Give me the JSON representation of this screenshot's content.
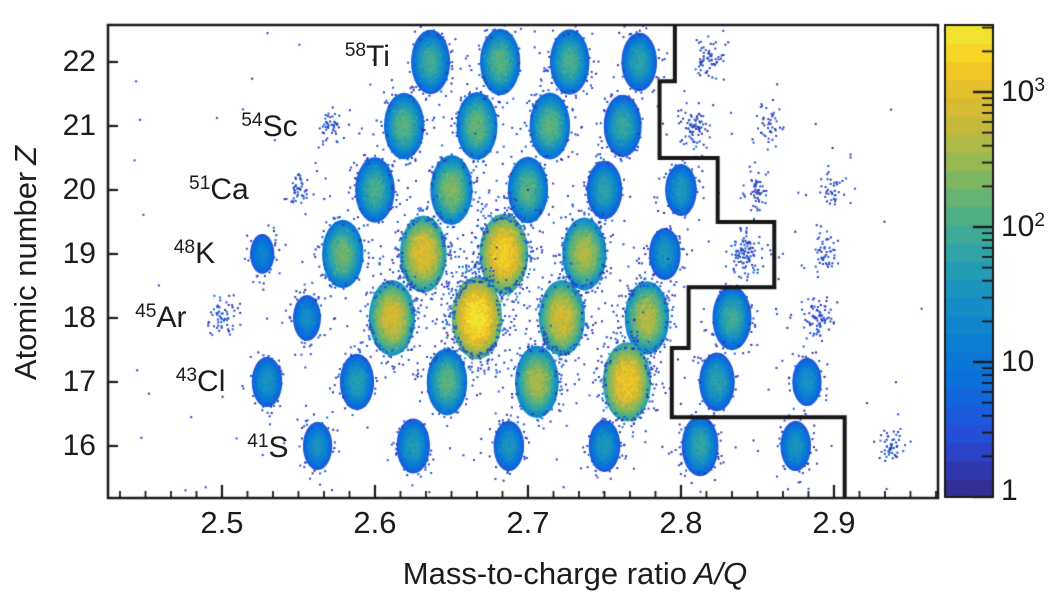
{
  "chart_data": {
    "type": "heatmap",
    "title": "",
    "xlabel": "Mass-to-charge ratio A/Q",
    "xlabel_text": "Mass-to-charge ratio",
    "xlabel_math": "A/Q",
    "ylabel": "Atomic number Z",
    "ylabel_text": "Atomic number",
    "ylabel_math": "Z",
    "xlim": [
      2.4255,
      2.968
    ],
    "ylim": [
      15.187,
      22.578
    ],
    "x_ticks": [
      2.5,
      2.6,
      2.7,
      2.8,
      2.9
    ],
    "x_tick_labels": [
      "2.5",
      "2.6",
      "2.7",
      "2.8",
      "2.9"
    ],
    "x_minor_divisions": 6,
    "y_ticks": [
      16,
      17,
      18,
      19,
      20,
      21,
      22
    ],
    "y_tick_labels": [
      "16",
      "17",
      "18",
      "19",
      "20",
      "21",
      "22"
    ],
    "grid": false,
    "colormap": "parula",
    "colorbar": {
      "scale": "log",
      "min": 1,
      "max": 3100,
      "tick_values": [
        1,
        10,
        100,
        1000
      ],
      "tick_labels": [
        {
          "base": "1",
          "sup": ""
        },
        {
          "base": "10",
          "sup": ""
        },
        {
          "base": "10",
          "sup": "2"
        },
        {
          "base": "10",
          "sup": "3"
        }
      ]
    },
    "isotope_labels": [
      {
        "mass": "58",
        "symbol": "Ti",
        "aq": 2.595,
        "z": 22.08
      },
      {
        "mass": "54",
        "symbol": "Sc",
        "aq": 2.531,
        "z": 20.98
      },
      {
        "mass": "51",
        "symbol": "Ca",
        "aq": 2.498,
        "z": 20.0
      },
      {
        "mass": "48",
        "symbol": "K",
        "aq": 2.482,
        "z": 19.0
      },
      {
        "mass": "45",
        "symbol": "Ar",
        "aq": 2.46,
        "z": 18.0
      },
      {
        "mass": "43",
        "symbol": "Cl",
        "aq": 2.486,
        "z": 17.0
      },
      {
        "mass": "41",
        "symbol": "S",
        "aq": 2.53,
        "z": 15.97
      }
    ],
    "gate_polyline_aq_z": [
      [
        2.796,
        22.578
      ],
      [
        2.796,
        21.7
      ],
      [
        2.786,
        21.7
      ],
      [
        2.786,
        20.5
      ],
      [
        2.824,
        20.5
      ],
      [
        2.824,
        19.5
      ],
      [
        2.861,
        19.5
      ],
      [
        2.861,
        18.48
      ],
      [
        2.805,
        18.48
      ],
      [
        2.805,
        17.53
      ],
      [
        2.794,
        17.53
      ],
      [
        2.794,
        16.45
      ],
      [
        2.907,
        16.45
      ],
      [
        2.907,
        15.187
      ]
    ],
    "blobs": [
      {
        "symbol": "Ti",
        "z": 22,
        "a": 58,
        "peak": 110
      },
      {
        "symbol": "Ti",
        "z": 22,
        "a": 59,
        "peak": 160
      },
      {
        "symbol": "Ti",
        "z": 22,
        "a": 60,
        "peak": 130
      },
      {
        "symbol": "Ti",
        "z": 22,
        "a": 61,
        "peak": 70
      },
      {
        "symbol": "Ti",
        "z": 22,
        "a": 62,
        "peak": 8
      },
      {
        "symbol": "Sc",
        "z": 21,
        "a": 54,
        "peak": 5
      },
      {
        "symbol": "Sc",
        "z": 21,
        "a": 55,
        "peak": 160
      },
      {
        "symbol": "Sc",
        "z": 21,
        "a": 56,
        "peak": 200
      },
      {
        "symbol": "Sc",
        "z": 21,
        "a": 57,
        "peak": 170
      },
      {
        "symbol": "Sc",
        "z": 21,
        "a": 58,
        "peak": 90
      },
      {
        "symbol": "Sc",
        "z": 21,
        "a": 59,
        "peak": 12
      },
      {
        "symbol": "Sc",
        "z": 21,
        "a": 60,
        "peak": 4
      },
      {
        "symbol": "Ca",
        "z": 20,
        "a": 51,
        "peak": 5
      },
      {
        "symbol": "Ca",
        "z": 20,
        "a": 52,
        "peak": 130
      },
      {
        "symbol": "Ca",
        "z": 20,
        "a": 53,
        "peak": 290
      },
      {
        "symbol": "Ca",
        "z": 20,
        "a": 54,
        "peak": 160
      },
      {
        "symbol": "Ca",
        "z": 20,
        "a": 55,
        "peak": 70
      },
      {
        "symbol": "Ca",
        "z": 20,
        "a": 56,
        "peak": 45
      },
      {
        "symbol": "Ca",
        "z": 20,
        "a": 57,
        "peak": 6
      },
      {
        "symbol": "Ca",
        "z": 20,
        "a": 58,
        "peak": 3
      },
      {
        "symbol": "K",
        "z": 19,
        "a": 48,
        "peak": 20
      },
      {
        "symbol": "K",
        "z": 19,
        "a": 49,
        "peak": 220
      },
      {
        "symbol": "K",
        "z": 19,
        "a": 50,
        "peak": 1100
      },
      {
        "symbol": "K",
        "z": 19,
        "a": 51,
        "peak": 2000
      },
      {
        "symbol": "K",
        "z": 19,
        "a": 52,
        "peak": 500
      },
      {
        "symbol": "K",
        "z": 19,
        "a": 53,
        "peak": 45
      },
      {
        "symbol": "K",
        "z": 19,
        "a": 54,
        "peak": 18
      },
      {
        "symbol": "K",
        "z": 19,
        "a": 55,
        "peak": 6
      },
      {
        "symbol": "Ar",
        "z": 18,
        "a": 45,
        "peak": 6
      },
      {
        "symbol": "Ar",
        "z": 18,
        "a": 46,
        "peak": 30
      },
      {
        "symbol": "Ar",
        "z": 18,
        "a": 47,
        "peak": 900
      },
      {
        "symbol": "Ar",
        "z": 18,
        "a": 48,
        "peak": 3100
      },
      {
        "symbol": "Ar",
        "z": 18,
        "a": 49,
        "peak": 900
      },
      {
        "symbol": "Ar",
        "z": 18,
        "a": 50,
        "peak": 550
      },
      {
        "symbol": "Ar",
        "z": 18,
        "a": 51,
        "peak": 110
      },
      {
        "symbol": "Ar",
        "z": 18,
        "a": 52,
        "peak": 10
      },
      {
        "symbol": "Cl",
        "z": 17,
        "a": 43,
        "peak": 40
      },
      {
        "symbol": "Cl",
        "z": 17,
        "a": 44,
        "peak": 60
      },
      {
        "symbol": "Cl",
        "z": 17,
        "a": 45,
        "peak": 170
      },
      {
        "symbol": "Cl",
        "z": 17,
        "a": 46,
        "peak": 450
      },
      {
        "symbol": "Cl",
        "z": 17,
        "a": 47,
        "peak": 1600
      },
      {
        "symbol": "Cl",
        "z": 17,
        "a": 48,
        "peak": 70
      },
      {
        "symbol": "Cl",
        "z": 17,
        "a": 49,
        "peak": 35
      },
      {
        "symbol": "S",
        "z": 16,
        "a": 41,
        "peak": 35
      },
      {
        "symbol": "S",
        "z": 16,
        "a": 42,
        "peak": 55
      },
      {
        "symbol": "S",
        "z": 16,
        "a": 43,
        "peak": 40
      },
      {
        "symbol": "S",
        "z": 16,
        "a": 44,
        "peak": 45
      },
      {
        "symbol": "S",
        "z": 16,
        "a": 45,
        "peak": 80
      },
      {
        "symbol": "S",
        "z": 16,
        "a": 46,
        "peak": 40
      },
      {
        "symbol": "S",
        "z": 16,
        "a": 47,
        "peak": 5
      }
    ]
  },
  "colors": {
    "background": "#ffffff",
    "axis": "#1a1a1a",
    "gate": "#161616",
    "text": "#1c1c1c"
  }
}
